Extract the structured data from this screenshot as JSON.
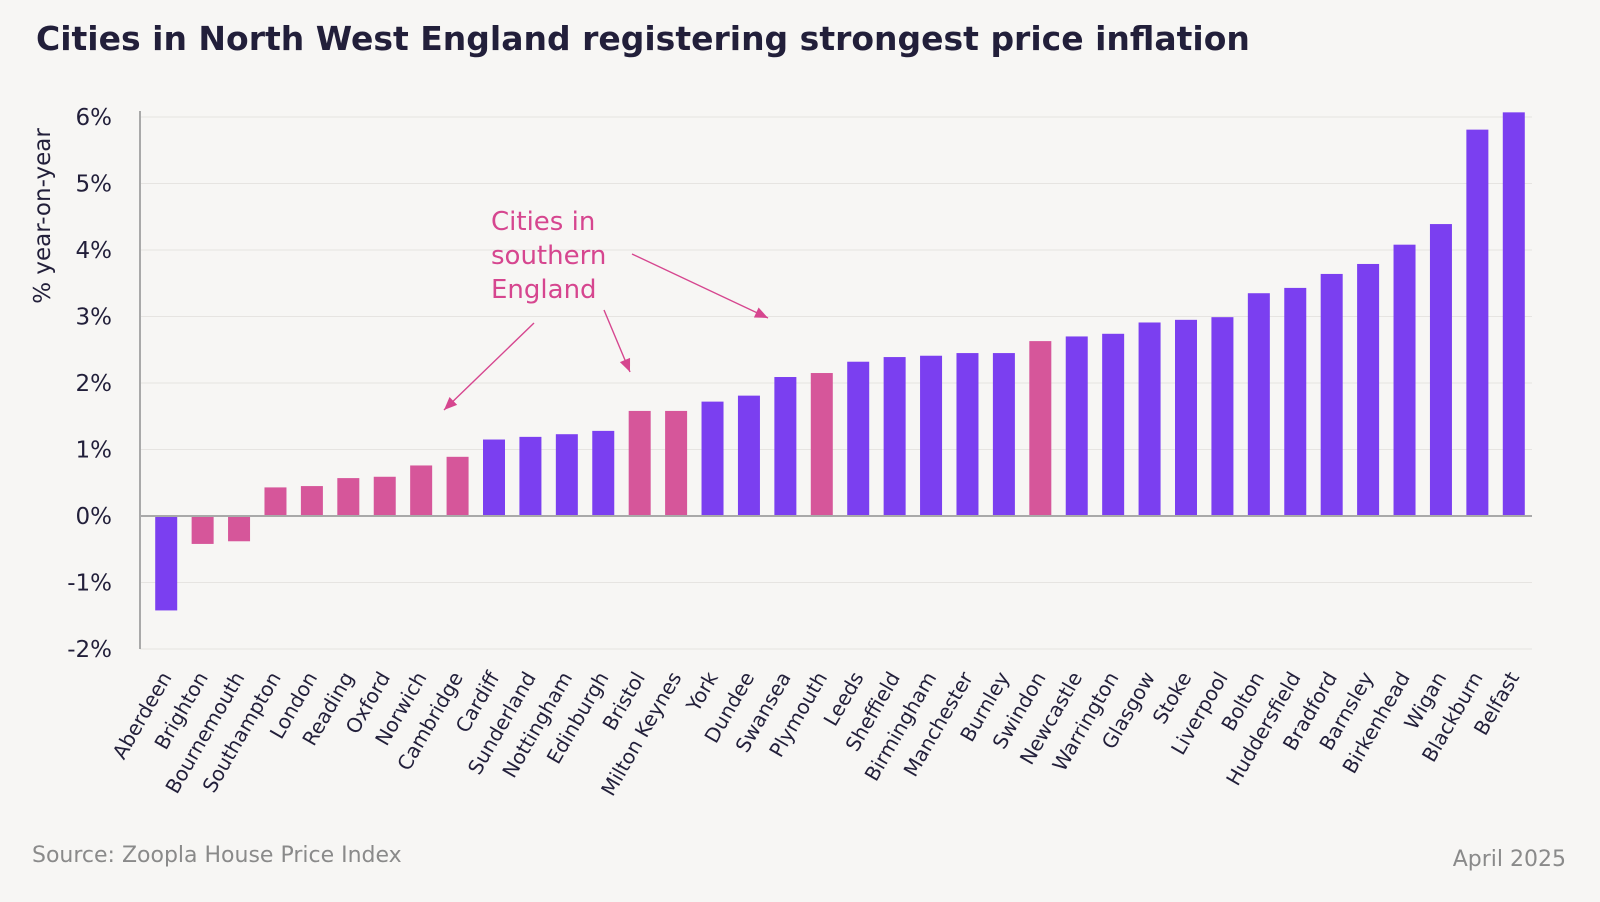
{
  "colors": {
    "north": "#7b3ff0",
    "south": "#d6569a",
    "annotation": "#d6468f"
  },
  "annotation_lines": [
    "Cities in",
    "southern",
    "England"
  ],
  "chart_data": {
    "type": "bar",
    "title": "Cities in North West England registering strongest price inflation",
    "ylabel": "% year-on-year",
    "ylim": [
      -2,
      6
    ],
    "yticks": [
      6,
      5,
      4,
      3,
      2,
      1,
      0,
      -1,
      -2
    ],
    "ytick_labels": [
      "6%",
      "5%",
      "4%",
      "3%",
      "2%",
      "1%",
      "0%",
      "-1%",
      "-2%"
    ],
    "grid": true,
    "categories": [
      "Aberdeen",
      "Brighton",
      "Bournemouth",
      "Southampton",
      "London",
      "Reading",
      "Oxford",
      "Norwich",
      "Cambridge",
      "Cardiff",
      "Sunderland",
      "Nottingham",
      "Edinburgh",
      "Bristol",
      "Milton Keynes",
      "York",
      "Dundee",
      "Swansea",
      "Plymouth",
      "Leeds",
      "Sheffield",
      "Birmingham",
      "Manchester",
      "Burnley",
      "Swindon",
      "Newcastle",
      "Warrington",
      "Glasgow",
      "Stoke",
      "Liverpool",
      "Bolton",
      "Huddersfield",
      "Bradford",
      "Barnsley",
      "Birkenhead",
      "Wigan",
      "Blackburn",
      "Belfast"
    ],
    "values": [
      -1.42,
      -0.42,
      -0.38,
      0.43,
      0.45,
      0.57,
      0.59,
      0.76,
      0.89,
      1.15,
      1.19,
      1.23,
      1.28,
      1.58,
      1.58,
      1.72,
      1.81,
      2.09,
      2.15,
      2.32,
      2.39,
      2.41,
      2.45,
      2.45,
      2.63,
      2.7,
      2.74,
      2.91,
      2.95,
      2.99,
      3.35,
      3.43,
      3.64,
      3.79,
      4.08,
      4.39,
      5.81,
      6.07
    ],
    "southern": [
      false,
      true,
      true,
      true,
      true,
      true,
      true,
      true,
      true,
      false,
      false,
      false,
      false,
      true,
      true,
      false,
      false,
      false,
      true,
      false,
      false,
      false,
      false,
      false,
      true,
      false,
      false,
      false,
      false,
      false,
      false,
      false,
      false,
      false,
      false,
      false,
      false,
      false
    ],
    "source": "Source: Zoopla House Price Index",
    "date": "April 2025"
  }
}
